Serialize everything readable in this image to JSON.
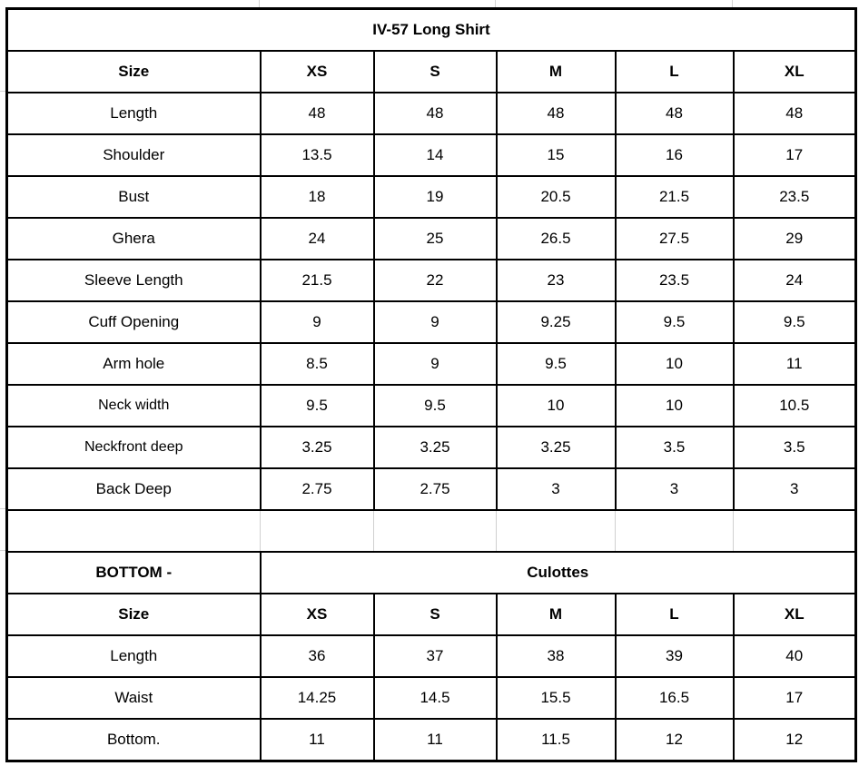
{
  "top": {
    "title": "IV-57 Long Shirt",
    "header": [
      "Size",
      "XS",
      "S",
      "M",
      "L",
      "XL"
    ],
    "rows": [
      [
        "Length",
        "48",
        "48",
        "48",
        "48",
        "48"
      ],
      [
        "Shoulder",
        "13.5",
        "14",
        "15",
        "16",
        "17"
      ],
      [
        "Bust",
        "18",
        "19",
        "20.5",
        "21.5",
        "23.5"
      ],
      [
        "Ghera",
        "24",
        "25",
        "26.5",
        "27.5",
        "29"
      ],
      [
        "Sleeve Length",
        "21.5",
        "22",
        "23",
        "23.5",
        "24"
      ],
      [
        "Cuff Opening",
        "9",
        "9",
        "9.25",
        "9.5",
        "9.5"
      ],
      [
        "Arm hole",
        "8.5",
        "9",
        "9.5",
        "10",
        "11"
      ],
      [
        "Neck width",
        "9.5",
        "9.5",
        "10",
        "10",
        "10.5"
      ],
      [
        "Neckfront deep",
        "3.25",
        "3.25",
        "3.25",
        "3.5",
        "3.5"
      ],
      [
        "Back Deep",
        "2.75",
        "2.75",
        "3",
        "3",
        "3"
      ]
    ]
  },
  "bottom": {
    "label": "BOTTOM -",
    "title": "Culottes",
    "header": [
      "Size",
      "XS",
      "S",
      "M",
      "L",
      "XL"
    ],
    "rows": [
      [
        "Length",
        "36",
        "37",
        "38",
        "39",
        "40"
      ],
      [
        "Waist",
        "14.25",
        "14.5",
        "15.5",
        "16.5",
        "17"
      ],
      [
        "Bottom.",
        "11",
        "11",
        "11.5",
        "12",
        "12"
      ]
    ]
  }
}
